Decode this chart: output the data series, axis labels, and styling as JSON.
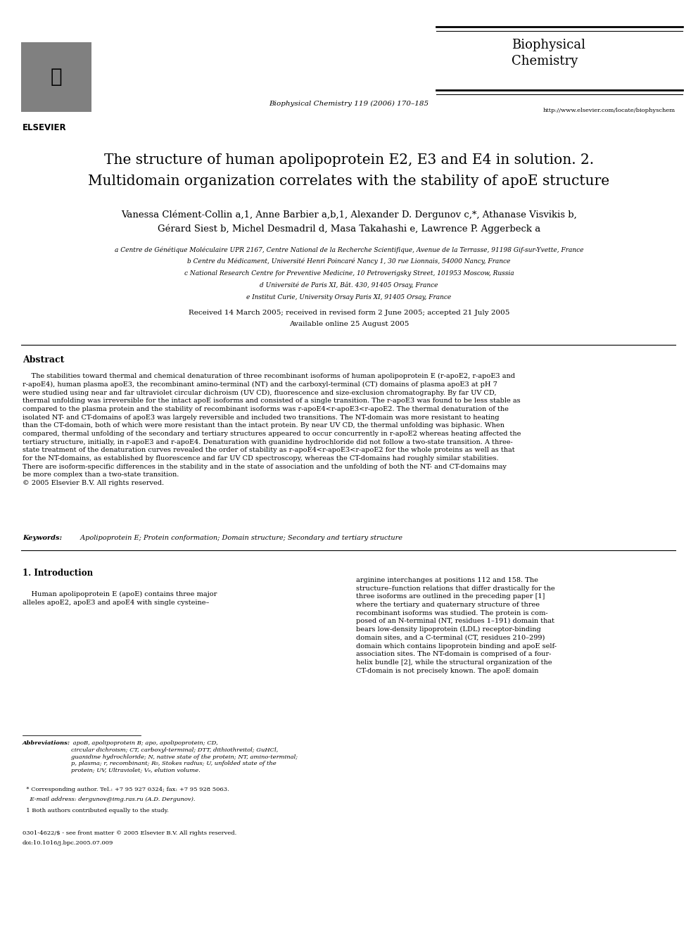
{
  "bg_color": "#ffffff",
  "page_width": 9.92,
  "page_height": 13.23,
  "dpi": 100,
  "header": {
    "journal_name": "Biophysical\nChemistry",
    "journal_citation": "Biophysical Chemistry 119 (2006) 170–185",
    "journal_url": "http://www.elsevier.com/locate/biophyschem",
    "elsevier_text": "ELSEVIER"
  },
  "title_line1": "The structure of human apolipoprotein E2, E3 and E4 in solution. 2.",
  "title_line2": "Multidomain organization correlates with the stability of apoE structure",
  "author_line1": "Vanessa Clément-Collin a,1, Anne Barbier a,b,1, Alexander D. Dergunov c,*, Athanase Visvikis b,",
  "author_line2": "Gérard Siest b, Michel Desmadril d, Masa Takahashi e, Lawrence P. Aggerbeck a",
  "aff_a": "a Centre de Génétique Moléculaire UPR 2167, Centre National de la Recherche Scientifique, Avenue de la Terrasse, 91198 Gif-sur-Yvette, France",
  "aff_b": "b Centre du Médicament, Université Henri Poincaré Nancy 1, 30 rue Lionnais, 54000 Nancy, France",
  "aff_c": "c National Research Centre for Preventive Medicine, 10 Petroverigsky Street, 101953 Moscow, Russia",
  "aff_d": "d Université de Paris XI, Bât. 430, 91405 Orsay, France",
  "aff_e": "e Institut Curie, University Orsay Paris XI, 91405 Orsay, France",
  "received_line1": "Received 14 March 2005; received in revised form 2 June 2005; accepted 21 July 2005",
  "received_line2": "Available online 25 August 2005",
  "abstract_heading": "Abstract",
  "abstract_indent": "    The stabilities toward thermal and chemical denaturation of three recombinant isoforms of human apolipoprotein E (r-apoE2, r-apoE3 and\nr-apoE4), human plasma apoE3, the recombinant amino-terminal (NT) and the carboxyl-terminal (CT) domains of plasma apoE3 at pH 7\nwere studied using near and far ultraviolet circular dichroism (UV CD), fluorescence and size-exclusion chromatography. By far UV CD,\nthermal unfolding was irreversible for the intact apoE isoforms and consisted of a single transition. The r-apoE3 was found to be less stable as\ncompared to the plasma protein and the stability of recombinant isoforms was r-apoE4<r-apoE3<r-apoE2. The thermal denaturation of the\nisolated NT- and CT-domains of apoE3 was largely reversible and included two transitions. The NT-domain was more resistant to heating\nthan the CT-domain, both of which were more resistant than the intact protein. By near UV CD, the thermal unfolding was biphasic. When\ncompared, thermal unfolding of the secondary and tertiary structures appeared to occur concurrently in r-apoE2 whereas heating affected the\ntertiary structure, initially, in r-apoE3 and r-apoE4. Denaturation with guanidine hydrochloride did not follow a two-state transition. A three-\nstate treatment of the denaturation curves revealed the order of stability as r-apoE4<r-apoE3<r-apoE2 for the whole proteins as well as that\nfor the NT-domains, as established by fluorescence and far UV CD spectroscopy, whereas the CT-domains had roughly similar stabilities.\nThere are isoform-specific differences in the stability and in the state of association and the unfolding of both the NT- and CT-domains may\nbe more complex than a two-state transition.\n© 2005 Elsevier B.V. All rights reserved.",
  "keywords_bold": "Keywords:",
  "keywords_rest": " Apolipoprotein E; Protein conformation; Domain structure; Secondary and tertiary structure",
  "sec1_heading": "1. Introduction",
  "sec1_col1_para": "    Human apolipoprotein E (apoE) contains three major\nalleles apoE2, apoE3 and apoE4 with single cysteine–",
  "sec1_col2_para": "arginine interchanges at positions 112 and 158. The\nstructure–function relations that differ drastically for the\nthree isoforms are outlined in the preceding paper [1]\nwhere the tertiary and quaternary structure of three\nrecombinant isoforms was studied. The protein is com-\nposed of an N-terminal (NT, residues 1–191) domain that\nbears low-density lipoprotein (LDL) receptor-binding\ndomain sites, and a C-terminal (CT, residues 210–299)\ndomain which contains lipoprotein binding and apoE self-\nassociation sites. The NT-domain is comprised of a four-\nhelix bundle [2], while the structural organization of the\nCT-domain is not precisely known. The apoE domain",
  "fn_abbrev_label": "Abbreviations:",
  "fn_abbrev_text": " apoB, apolipoprotein B; apo, apolipoprotein; CD,\ncircular dichroism; CT, carboxyl-terminal; DTT, dithiothreitol; GuHCl,\nguanidine hydrochloride; N, native state of the protein; NT, amino-terminal;\np, plasma; r, recombinant; R₀, Stokes radius; U, unfolded state of the\nprotein; UV, Ultraviolet; Vₑ, elution volume.",
  "fn_star": "  * Corresponding author. Tel.: +7 95 927 0324; fax: +7 95 928 5063.",
  "fn_email": "    E-mail address: dergunov@img.ras.ru (A.D. Dergunov).",
  "fn_1": "  1 Both authors contributed equally to the study.",
  "copyright1": "0301-4622/$ - see front matter © 2005 Elsevier B.V. All rights reserved.",
  "copyright2": "doi:10.1016/j.bpc.2005.07.009"
}
